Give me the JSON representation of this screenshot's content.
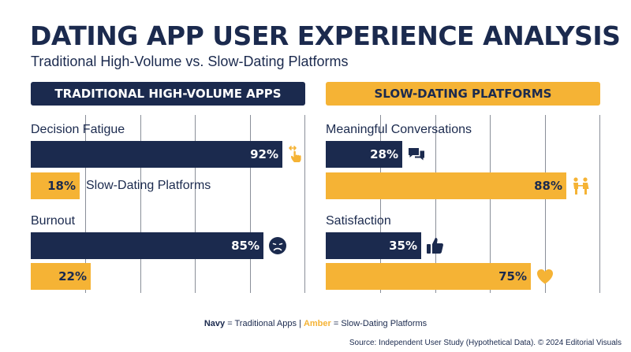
{
  "title": "DATING APP USER EXPERIENCE ANALYSIS",
  "subtitle": "Traditional High-Volume vs. Slow-Dating Platforms",
  "colors": {
    "navy": "#1b2a4e",
    "amber": "#f5b335"
  },
  "chart_data": [
    {
      "type": "bar",
      "orientation": "horizontal",
      "title": "TRADITIONAL HIGH-VOLUME APPS",
      "xlim": [
        0,
        100
      ],
      "grid": true,
      "metrics": [
        {
          "label": "Decision Fatigue",
          "bars": [
            {
              "value": 92,
              "display": "92%",
              "color": "navy",
              "icon": "hand-swipe-icon"
            },
            {
              "value": 18,
              "display": "18%",
              "color": "amber",
              "note": "Slow-Dating Platforms"
            }
          ]
        },
        {
          "label": "Burnout",
          "bars": [
            {
              "value": 85,
              "display": "85%",
              "color": "navy",
              "icon": "sad-face-icon"
            },
            {
              "value": 22,
              "display": "22%",
              "color": "amber"
            }
          ]
        }
      ]
    },
    {
      "type": "bar",
      "orientation": "horizontal",
      "title": "SLOW-DATING PLATFORMS",
      "xlim": [
        0,
        100
      ],
      "grid": true,
      "metrics": [
        {
          "label": "Meaningful Conversations",
          "bars": [
            {
              "value": 28,
              "display": "28%",
              "color": "navy",
              "icon": "chat-bubbles-icon"
            },
            {
              "value": 88,
              "display": "88%",
              "color": "amber",
              "icon": "couple-icon"
            }
          ]
        },
        {
          "label": "Satisfaction",
          "bars": [
            {
              "value": 35,
              "display": "35%",
              "color": "navy",
              "icon": "thumbs-up-icon"
            },
            {
              "value": 75,
              "display": "75%",
              "color": "amber",
              "icon": "heart-icon"
            }
          ]
        }
      ]
    }
  ],
  "legend": {
    "navy_word": "Navy",
    "navy_text": "= Traditional Apps",
    "separator": "|",
    "amber_word": "Amber",
    "amber_text": "= Slow-Dating Platforms"
  },
  "source": "Source: Independent User Study (Hypothetical Data). © 2024 Editorial Visuals"
}
